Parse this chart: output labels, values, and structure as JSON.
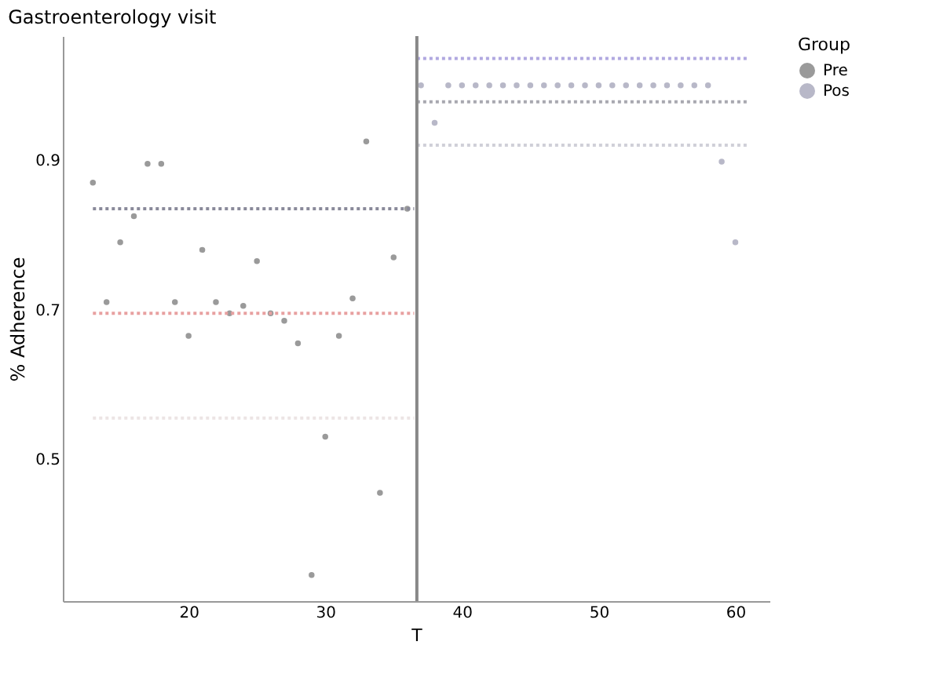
{
  "chart_data": {
    "type": "scatter",
    "title": "Gastroenterology visit",
    "xlabel": "T",
    "ylabel": "% Adherence",
    "legend_title": "Group",
    "legend": "right",
    "grid": false,
    "marker": "circle",
    "xlim": [
      10.8,
      62.5
    ],
    "xticks": [
      20,
      30,
      40,
      50,
      60
    ],
    "ylim": [
      0.31,
      1.066
    ],
    "yticks": [
      0.5,
      0.7,
      0.9
    ],
    "ref_lines": [
      {
        "axis": "x",
        "value": 36.7,
        "color": "#888888",
        "line_style": "solid"
      }
    ],
    "series": [
      {
        "name": "Pre",
        "color": "#9a9a9a",
        "x": [
          13,
          14,
          15,
          16,
          17,
          18,
          19,
          20,
          21,
          22,
          23,
          24,
          25,
          26,
          27,
          28,
          29,
          30,
          31,
          32,
          33,
          34,
          35,
          36
        ],
        "values": [
          0.87,
          0.71,
          0.79,
          0.825,
          0.895,
          0.895,
          0.71,
          0.665,
          0.78,
          0.71,
          0.695,
          0.705,
          0.765,
          0.695,
          0.685,
          0.655,
          0.345,
          0.53,
          0.665,
          0.715,
          0.925,
          0.455,
          0.77,
          0.835
        ]
      },
      {
        "name": "Pos",
        "color": "#b8b8c8",
        "x": [
          37,
          38,
          39,
          40,
          41,
          42,
          43,
          44,
          45,
          46,
          47,
          48,
          49,
          50,
          51,
          52,
          53,
          54,
          55,
          56,
          57,
          58,
          59,
          60
        ],
        "values": [
          1.0,
          0.95,
          1.0,
          1.0,
          1.0,
          1.0,
          1.0,
          1.0,
          1.0,
          1.0,
          1.0,
          1.0,
          1.0,
          1.0,
          1.0,
          1.0,
          1.0,
          1.0,
          1.0,
          1.0,
          1.0,
          1.0,
          0.898,
          0.79
        ]
      },
      {
        "type": "line",
        "marker": "none",
        "line_style": "dotted",
        "color": "#8a8a9a",
        "x": [
          13,
          36.5
        ],
        "values": [
          0.835,
          0.835
        ]
      },
      {
        "type": "line",
        "marker": "none",
        "line_style": "dotted",
        "color": "#e8a0a0",
        "x": [
          13,
          36.5
        ],
        "values": [
          0.695,
          0.695
        ]
      },
      {
        "type": "line",
        "marker": "none",
        "line_style": "dotted",
        "color": "#ece4e4",
        "x": [
          13,
          36.5
        ],
        "values": [
          0.555,
          0.555
        ]
      },
      {
        "type": "line",
        "marker": "none",
        "line_style": "dotted",
        "color": "#b0a8e0",
        "x": [
          36.7,
          61
        ],
        "values": [
          1.036,
          1.036
        ]
      },
      {
        "type": "line",
        "marker": "none",
        "line_style": "dotted",
        "color": "#a8a8b0",
        "x": [
          36.7,
          61
        ],
        "values": [
          0.978,
          0.978
        ]
      },
      {
        "type": "line",
        "marker": "none",
        "line_style": "dotted",
        "color": "#d0d0d8",
        "x": [
          36.7,
          61
        ],
        "values": [
          0.92,
          0.92
        ]
      }
    ]
  }
}
